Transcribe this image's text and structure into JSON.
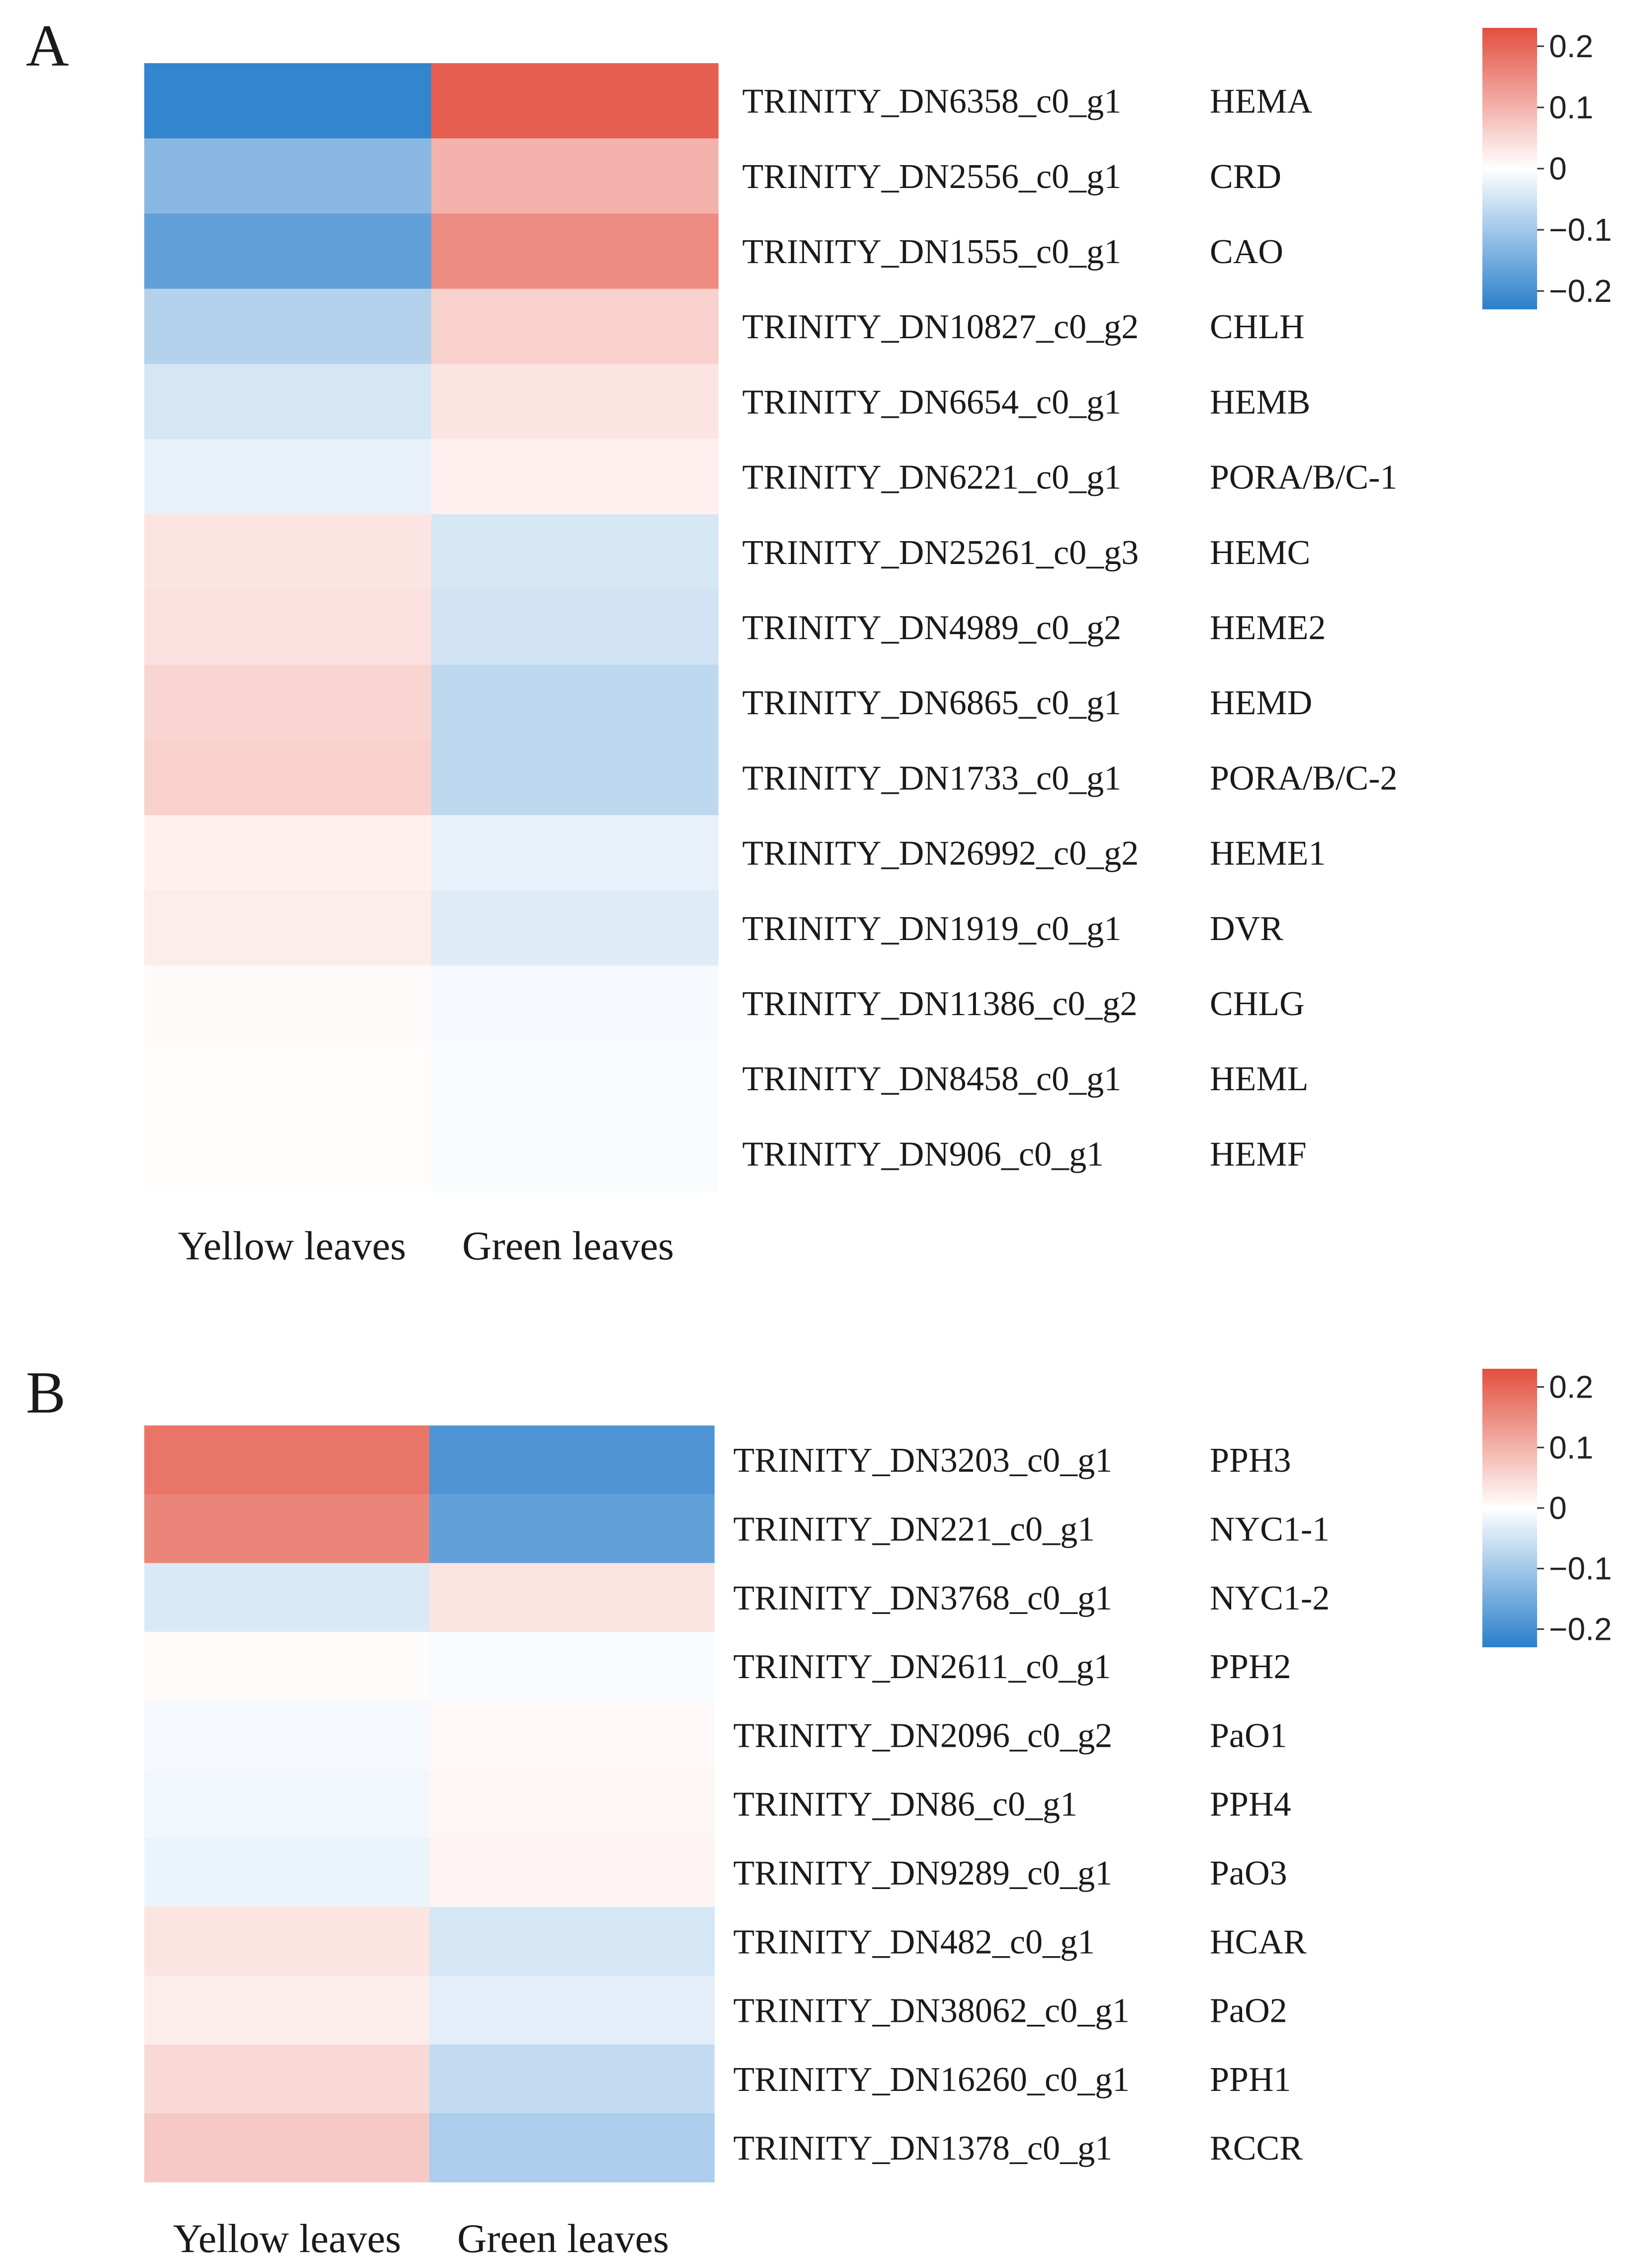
{
  "chart_data": [
    {
      "type": "heatmap",
      "panel_label": "A",
      "columns": [
        "Yellow leaves",
        "Green leaves"
      ],
      "rows": [
        {
          "id": "TRINITY_DN6358_c0_g1",
          "gene": "HEMA",
          "values": [
            -0.22,
            0.21
          ]
        },
        {
          "id": "TRINITY_DN2556_c0_g1",
          "gene": "CRD",
          "values": [
            -0.13,
            0.1
          ]
        },
        {
          "id": "TRINITY_DN1555_c0_g1",
          "gene": "CAO",
          "values": [
            -0.17,
            0.15
          ]
        },
        {
          "id": "TRINITY_DN10827_c0_g2",
          "gene": "CHLH",
          "values": [
            -0.08,
            0.06
          ]
        },
        {
          "id": "TRINITY_DN6654_c0_g1",
          "gene": "HEMB",
          "values": [
            -0.045,
            0.035
          ]
        },
        {
          "id": "TRINITY_DN6221_c0_g1",
          "gene": "PORA/B/C-1",
          "values": [
            -0.025,
            0.02
          ]
        },
        {
          "id": "TRINITY_DN25261_c0_g3",
          "gene": "HEMC",
          "values": [
            0.035,
            -0.045
          ]
        },
        {
          "id": "TRINITY_DN4989_c0_g2",
          "gene": "HEME2",
          "values": [
            0.04,
            -0.05
          ]
        },
        {
          "id": "TRINITY_DN6865_c0_g1",
          "gene": "HEMD",
          "values": [
            0.055,
            -0.07
          ]
        },
        {
          "id": "TRINITY_DN1733_c0_g1",
          "gene": "PORA/B/C-2",
          "values": [
            0.06,
            -0.07
          ]
        },
        {
          "id": "TRINITY_DN26992_c0_g2",
          "gene": "HEME1",
          "values": [
            0.02,
            -0.025
          ]
        },
        {
          "id": "TRINITY_DN1919_c0_g1",
          "gene": "DVR",
          "values": [
            0.025,
            -0.035
          ]
        },
        {
          "id": "TRINITY_DN11386_c0_g2",
          "gene": "CHLG",
          "values": [
            0.006,
            -0.01
          ]
        },
        {
          "id": "TRINITY_DN8458_c0_g1",
          "gene": "HEML",
          "values": [
            0.004,
            -0.006
          ]
        },
        {
          "id": "TRINITY_DN906_c0_g1",
          "gene": "HEMF",
          "values": [
            0.004,
            -0.006
          ]
        }
      ],
      "legend": {
        "ticks": [
          "0.2",
          "0.1",
          "0",
          "−0.1",
          "−0.2"
        ],
        "tick_values": [
          0.2,
          0.1,
          0,
          -0.1,
          -0.2
        ],
        "range": [
          -0.23,
          0.23
        ],
        "placement": "top-right"
      },
      "colors": {
        "low": "#2a7fcc",
        "mid": "#ffffff",
        "high": "#e34f3f"
      }
    },
    {
      "type": "heatmap",
      "panel_label": "B",
      "columns": [
        "Yellow leaves",
        "Green leaves"
      ],
      "rows": [
        {
          "id": "TRINITY_DN3203_c0_g1",
          "gene": "PPH3",
          "values": [
            0.18,
            -0.19
          ]
        },
        {
          "id": "TRINITY_DN221_c0_g1",
          "gene": "NYC1-1",
          "values": [
            0.16,
            -0.17
          ]
        },
        {
          "id": "TRINITY_DN3768_c0_g1",
          "gene": "NYC1-2",
          "values": [
            -0.04,
            0.035
          ]
        },
        {
          "id": "TRINITY_DN2611_c0_g1",
          "gene": "PPH2",
          "values": [
            0.005,
            -0.008
          ]
        },
        {
          "id": "TRINITY_DN2096_c0_g2",
          "gene": "PaO1",
          "values": [
            -0.01,
            0.008
          ]
        },
        {
          "id": "TRINITY_DN86_c0_g1",
          "gene": "PPH4",
          "values": [
            -0.015,
            0.012
          ]
        },
        {
          "id": "TRINITY_DN9289_c0_g1",
          "gene": "PaO3",
          "values": [
            -0.02,
            0.016
          ]
        },
        {
          "id": "TRINITY_DN482_c0_g1",
          "gene": "HCAR",
          "values": [
            0.035,
            -0.045
          ]
        },
        {
          "id": "TRINITY_DN38062_c0_g1",
          "gene": "PaO2",
          "values": [
            0.025,
            -0.03
          ]
        },
        {
          "id": "TRINITY_DN16260_c0_g1",
          "gene": "PPH1",
          "values": [
            0.05,
            -0.065
          ]
        },
        {
          "id": "TRINITY_DN1378_c0_g1",
          "gene": "RCCR",
          "values": [
            0.07,
            -0.09
          ]
        }
      ],
      "legend": {
        "ticks": [
          "0.2",
          "0.1",
          "0",
          "−0.1",
          "−0.2"
        ],
        "tick_values": [
          0.2,
          0.1,
          0,
          -0.1,
          -0.2
        ],
        "range": [
          -0.23,
          0.23
        ],
        "placement": "top-right"
      },
      "colors": {
        "low": "#2a7fcc",
        "mid": "#ffffff",
        "high": "#e34f3f"
      }
    }
  ]
}
